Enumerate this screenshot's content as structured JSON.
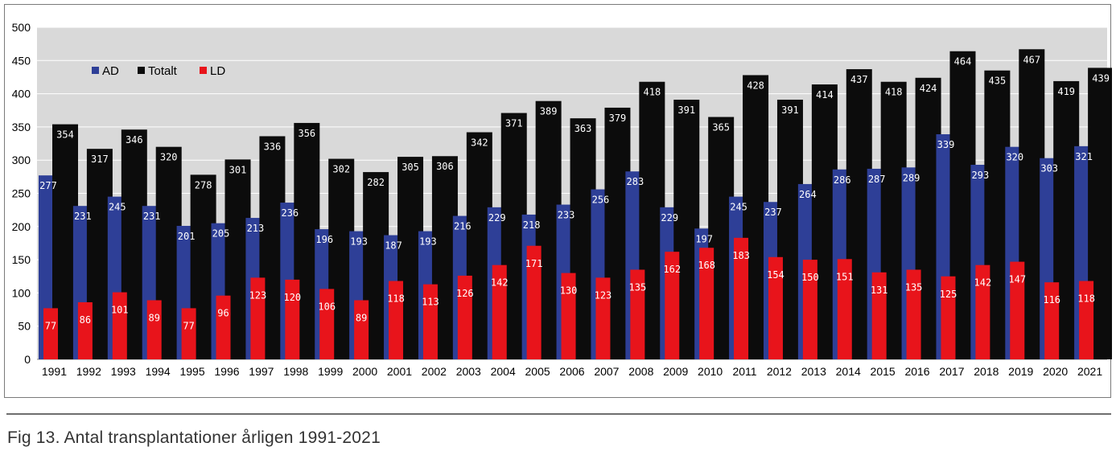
{
  "caption": "Fig 13. Antal transplantationer årligen 1991-2021",
  "colors": {
    "AD": "#2e3f97",
    "Totalt": "#0c0c0c",
    "LD": "#e8141b",
    "plot_bg": "#d9d9d9",
    "grid": "#ffffff"
  },
  "chart_data": {
    "type": "bar",
    "title": "",
    "xlabel": "",
    "ylabel": "",
    "ylim": [
      0,
      500
    ],
    "yticks": [
      0,
      50,
      100,
      150,
      200,
      250,
      300,
      350,
      400,
      450,
      500
    ],
    "grid": true,
    "legend": "top-left",
    "categories": [
      "1991",
      "1992",
      "1993",
      "1994",
      "1995",
      "1996",
      "1997",
      "1998",
      "1999",
      "2000",
      "2001",
      "2002",
      "2003",
      "2004",
      "2005",
      "2006",
      "2007",
      "2008",
      "2009",
      "2010",
      "2011",
      "2012",
      "2013",
      "2014",
      "2015",
      "2016",
      "2017",
      "2018",
      "2019",
      "2020",
      "2021"
    ],
    "series": [
      {
        "name": "AD",
        "values": [
          277,
          231,
          245,
          231,
          201,
          205,
          213,
          236,
          196,
          193,
          187,
          193,
          216,
          229,
          218,
          233,
          256,
          283,
          229,
          197,
          245,
          237,
          264,
          286,
          287,
          289,
          339,
          293,
          320,
          303,
          321
        ]
      },
      {
        "name": "Totalt",
        "values": [
          354,
          317,
          346,
          320,
          278,
          301,
          336,
          356,
          302,
          282,
          305,
          306,
          342,
          371,
          389,
          363,
          379,
          418,
          391,
          365,
          428,
          391,
          414,
          437,
          418,
          424,
          464,
          435,
          467,
          419,
          439
        ]
      },
      {
        "name": "LD",
        "values": [
          77,
          86,
          101,
          89,
          77,
          96,
          123,
          120,
          106,
          89,
          118,
          113,
          126,
          142,
          171,
          130,
          123,
          135,
          162,
          168,
          183,
          154,
          150,
          151,
          131,
          135,
          125,
          142,
          147,
          116,
          118
        ]
      }
    ]
  }
}
